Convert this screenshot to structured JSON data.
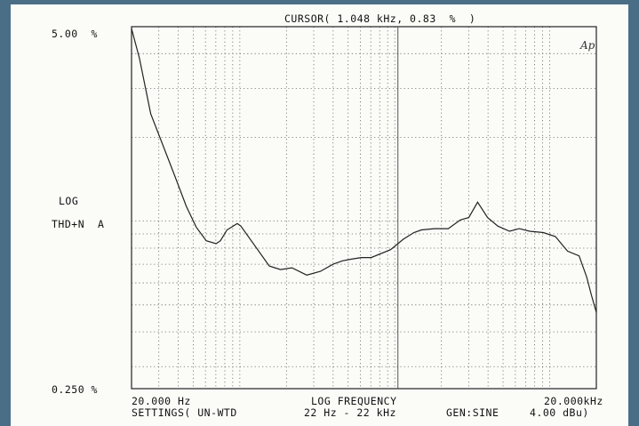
{
  "header": {
    "cursor_readout": "CURSOR( 1.048 kHz, 0.83  %  )"
  },
  "logo": "Ap",
  "y_axis": {
    "top_label": "5.00  %",
    "bottom_label": "0.250 %",
    "label_line1": "LOG",
    "label_line2": "THD+N  A"
  },
  "x_axis": {
    "left_label": "20.000 Hz",
    "center_label": "LOG FREQUENCY",
    "right_label": "20.000kHz"
  },
  "footer": {
    "settings": "SETTINGS( UN-WTD",
    "bandwidth": "22 Hz - 22 kHz",
    "generator": "GEN:SINE",
    "level": "4.00 dBu)"
  },
  "colors": {
    "background": "#4a6e86",
    "paper": "#fbfbf8",
    "ink": "#222222"
  },
  "chart_data": {
    "type": "line",
    "x_scale": "log",
    "y_scale": "log",
    "xlim": [
      20,
      20000
    ],
    "ylim": [
      0.25,
      5.0
    ],
    "grid": true,
    "cursor": {
      "x": 1048,
      "y": 0.83
    },
    "series": [
      {
        "x": [
          20,
          22.5,
          26.6,
          37.4,
          45.2,
          52.4,
          60.7,
          70.3,
          74.9,
          82.6,
          96.3,
          101.5,
          155,
          183,
          217,
          270,
          331,
          400,
          459,
          525,
          608,
          705,
          940,
          1133,
          1329,
          1488,
          1803,
          2214,
          2651,
          3006,
          3426,
          3970,
          4624,
          5500,
          6367,
          7415,
          9107,
          10900,
          13040,
          15480,
          17310,
          18620,
          20000
        ],
        "y": [
          4.92,
          3.85,
          2.43,
          1.49,
          1.13,
          0.95,
          0.85,
          0.83,
          0.85,
          0.93,
          0.98,
          0.96,
          0.69,
          0.67,
          0.68,
          0.64,
          0.66,
          0.7,
          0.72,
          0.73,
          0.74,
          0.74,
          0.79,
          0.86,
          0.91,
          0.93,
          0.94,
          0.94,
          1.01,
          1.03,
          1.17,
          1.03,
          0.96,
          0.92,
          0.94,
          0.92,
          0.91,
          0.88,
          0.78,
          0.75,
          0.63,
          0.54,
          0.47
        ]
      }
    ]
  }
}
